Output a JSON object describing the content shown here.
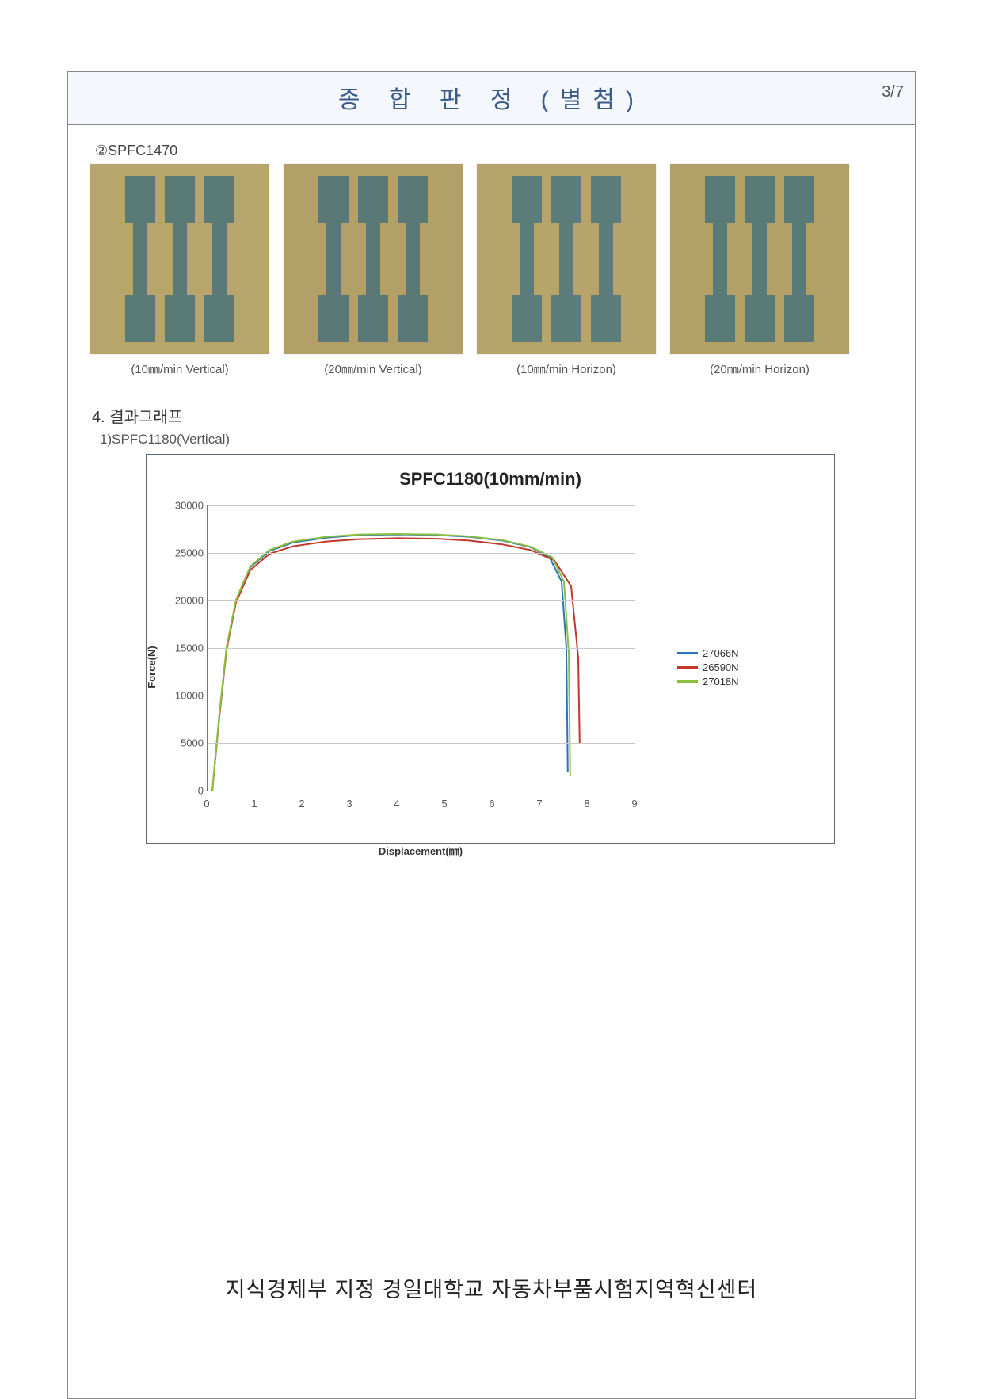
{
  "page_number": "3/7",
  "title": "종 합 판 정 (별첨)",
  "sample_section_label": "②SPFC1470",
  "photos": [
    {
      "caption": "(10㎜/min Vertical)",
      "bg": "#b8a56b",
      "spec_color": "#5a7a78"
    },
    {
      "caption": "(20㎜/min Vertical)",
      "bg": "#b3a068",
      "spec_color": "#597876"
    },
    {
      "caption": "(10㎜/min Horizon)",
      "bg": "#b7a46a",
      "spec_color": "#5b7c79"
    },
    {
      "caption": "(20㎜/min Horizon)",
      "bg": "#b2a066",
      "spec_color": "#5a7a77"
    }
  ],
  "section4_heading": "4. 결과그래프",
  "section4_sub": "1)SPFC1180(Vertical)",
  "chart": {
    "type": "line",
    "title": "SPFC1180(10mm/min)",
    "xlabel": "Displacement(㎜)",
    "ylabel": "Force(N)",
    "xlim": [
      0,
      9
    ],
    "ylim": [
      0,
      30000
    ],
    "xtick_step": 1,
    "ytick_step": 5000,
    "grid_color": "#c9c9c9",
    "axis_color": "#777777",
    "background": "#ffffff",
    "border_color": "#5c6b7a",
    "title_fontsize": 22,
    "label_fontsize": 13,
    "line_width": 2,
    "series": [
      {
        "name": "27066N",
        "color": "#2e74b5",
        "points": [
          [
            0.1,
            0
          ],
          [
            0.25,
            8000
          ],
          [
            0.4,
            15000
          ],
          [
            0.6,
            20000
          ],
          [
            0.9,
            23500
          ],
          [
            1.3,
            25200
          ],
          [
            1.8,
            26100
          ],
          [
            2.5,
            26600
          ],
          [
            3.2,
            26900
          ],
          [
            4.0,
            26950
          ],
          [
            4.8,
            26900
          ],
          [
            5.5,
            26700
          ],
          [
            6.2,
            26300
          ],
          [
            6.8,
            25600
          ],
          [
            7.2,
            24500
          ],
          [
            7.45,
            22000
          ],
          [
            7.55,
            15000
          ],
          [
            7.58,
            2000
          ]
        ]
      },
      {
        "name": "26590N",
        "color": "#c0392b",
        "points": [
          [
            0.1,
            0
          ],
          [
            0.25,
            7800
          ],
          [
            0.4,
            14800
          ],
          [
            0.6,
            19800
          ],
          [
            0.9,
            23200
          ],
          [
            1.3,
            24900
          ],
          [
            1.8,
            25700
          ],
          [
            2.5,
            26200
          ],
          [
            3.2,
            26450
          ],
          [
            4.0,
            26550
          ],
          [
            4.8,
            26500
          ],
          [
            5.5,
            26300
          ],
          [
            6.2,
            25900
          ],
          [
            6.8,
            25300
          ],
          [
            7.3,
            24200
          ],
          [
            7.65,
            21500
          ],
          [
            7.8,
            14000
          ],
          [
            7.83,
            5000
          ]
        ]
      },
      {
        "name": "27018N",
        "color": "#8bbf3f",
        "points": [
          [
            0.1,
            0
          ],
          [
            0.25,
            8100
          ],
          [
            0.4,
            15100
          ],
          [
            0.6,
            20100
          ],
          [
            0.9,
            23600
          ],
          [
            1.3,
            25300
          ],
          [
            1.8,
            26200
          ],
          [
            2.5,
            26700
          ],
          [
            3.2,
            26950
          ],
          [
            4.0,
            27000
          ],
          [
            4.8,
            26950
          ],
          [
            5.5,
            26750
          ],
          [
            6.2,
            26350
          ],
          [
            6.8,
            25650
          ],
          [
            7.25,
            24550
          ],
          [
            7.5,
            22000
          ],
          [
            7.6,
            14500
          ],
          [
            7.63,
            1500
          ]
        ]
      }
    ]
  },
  "footer": "지식경제부 지정 경일대학교 자동차부품시험지역혁신센터"
}
